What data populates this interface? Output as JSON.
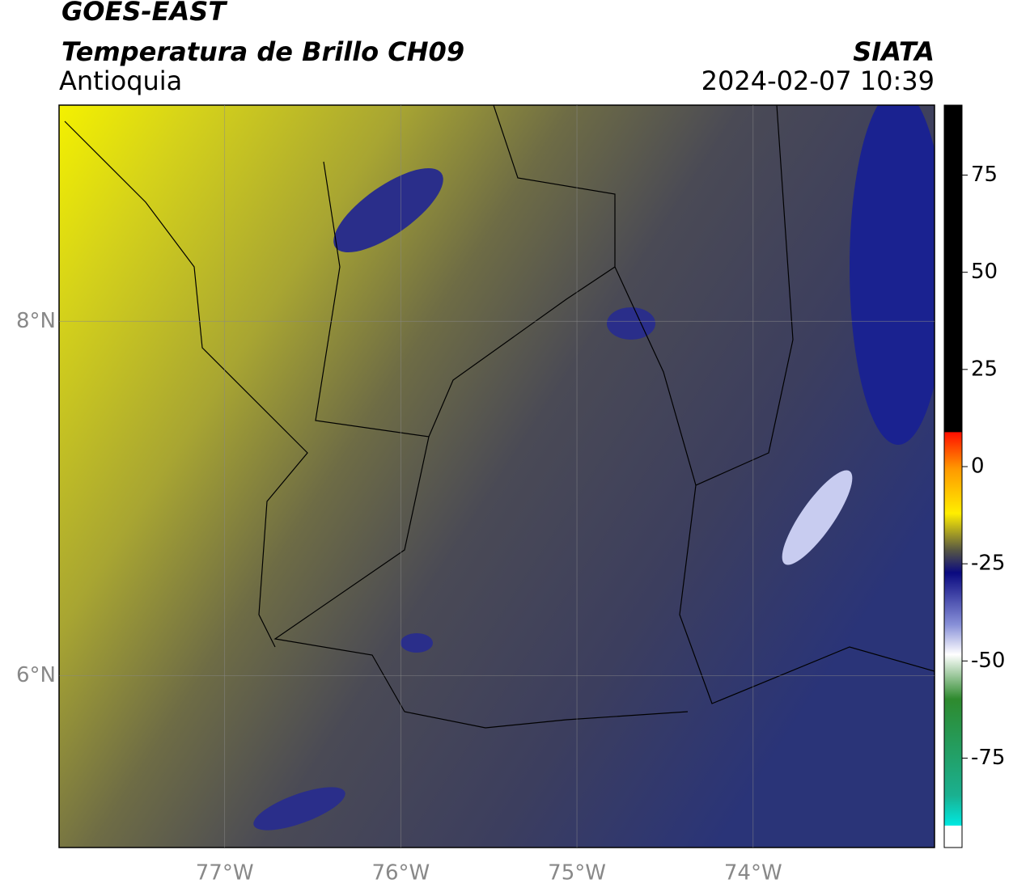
{
  "header": {
    "title": "GOES-EAST",
    "subtitle": "Temperatura de Brillo CH09",
    "region": "Antioquia",
    "source": "SIATA",
    "datetime": "2024-02-07 10:39"
  },
  "map": {
    "xlim": [
      -77.94,
      -72.97
    ],
    "ylim": [
      5.03,
      9.22
    ],
    "xticks": [
      {
        "value": -77,
        "label": "77°W"
      },
      {
        "value": -76,
        "label": "76°W"
      },
      {
        "value": -75,
        "label": "75°W"
      },
      {
        "value": -74,
        "label": "74°W"
      }
    ],
    "yticks": [
      {
        "value": 8,
        "label": "8°N"
      },
      {
        "value": 6,
        "label": "6°N"
      }
    ]
  },
  "colorbar": {
    "lim": [
      -98,
      93
    ],
    "ticks": [
      75,
      50,
      25,
      0,
      -25,
      -50,
      -75
    ]
  }
}
